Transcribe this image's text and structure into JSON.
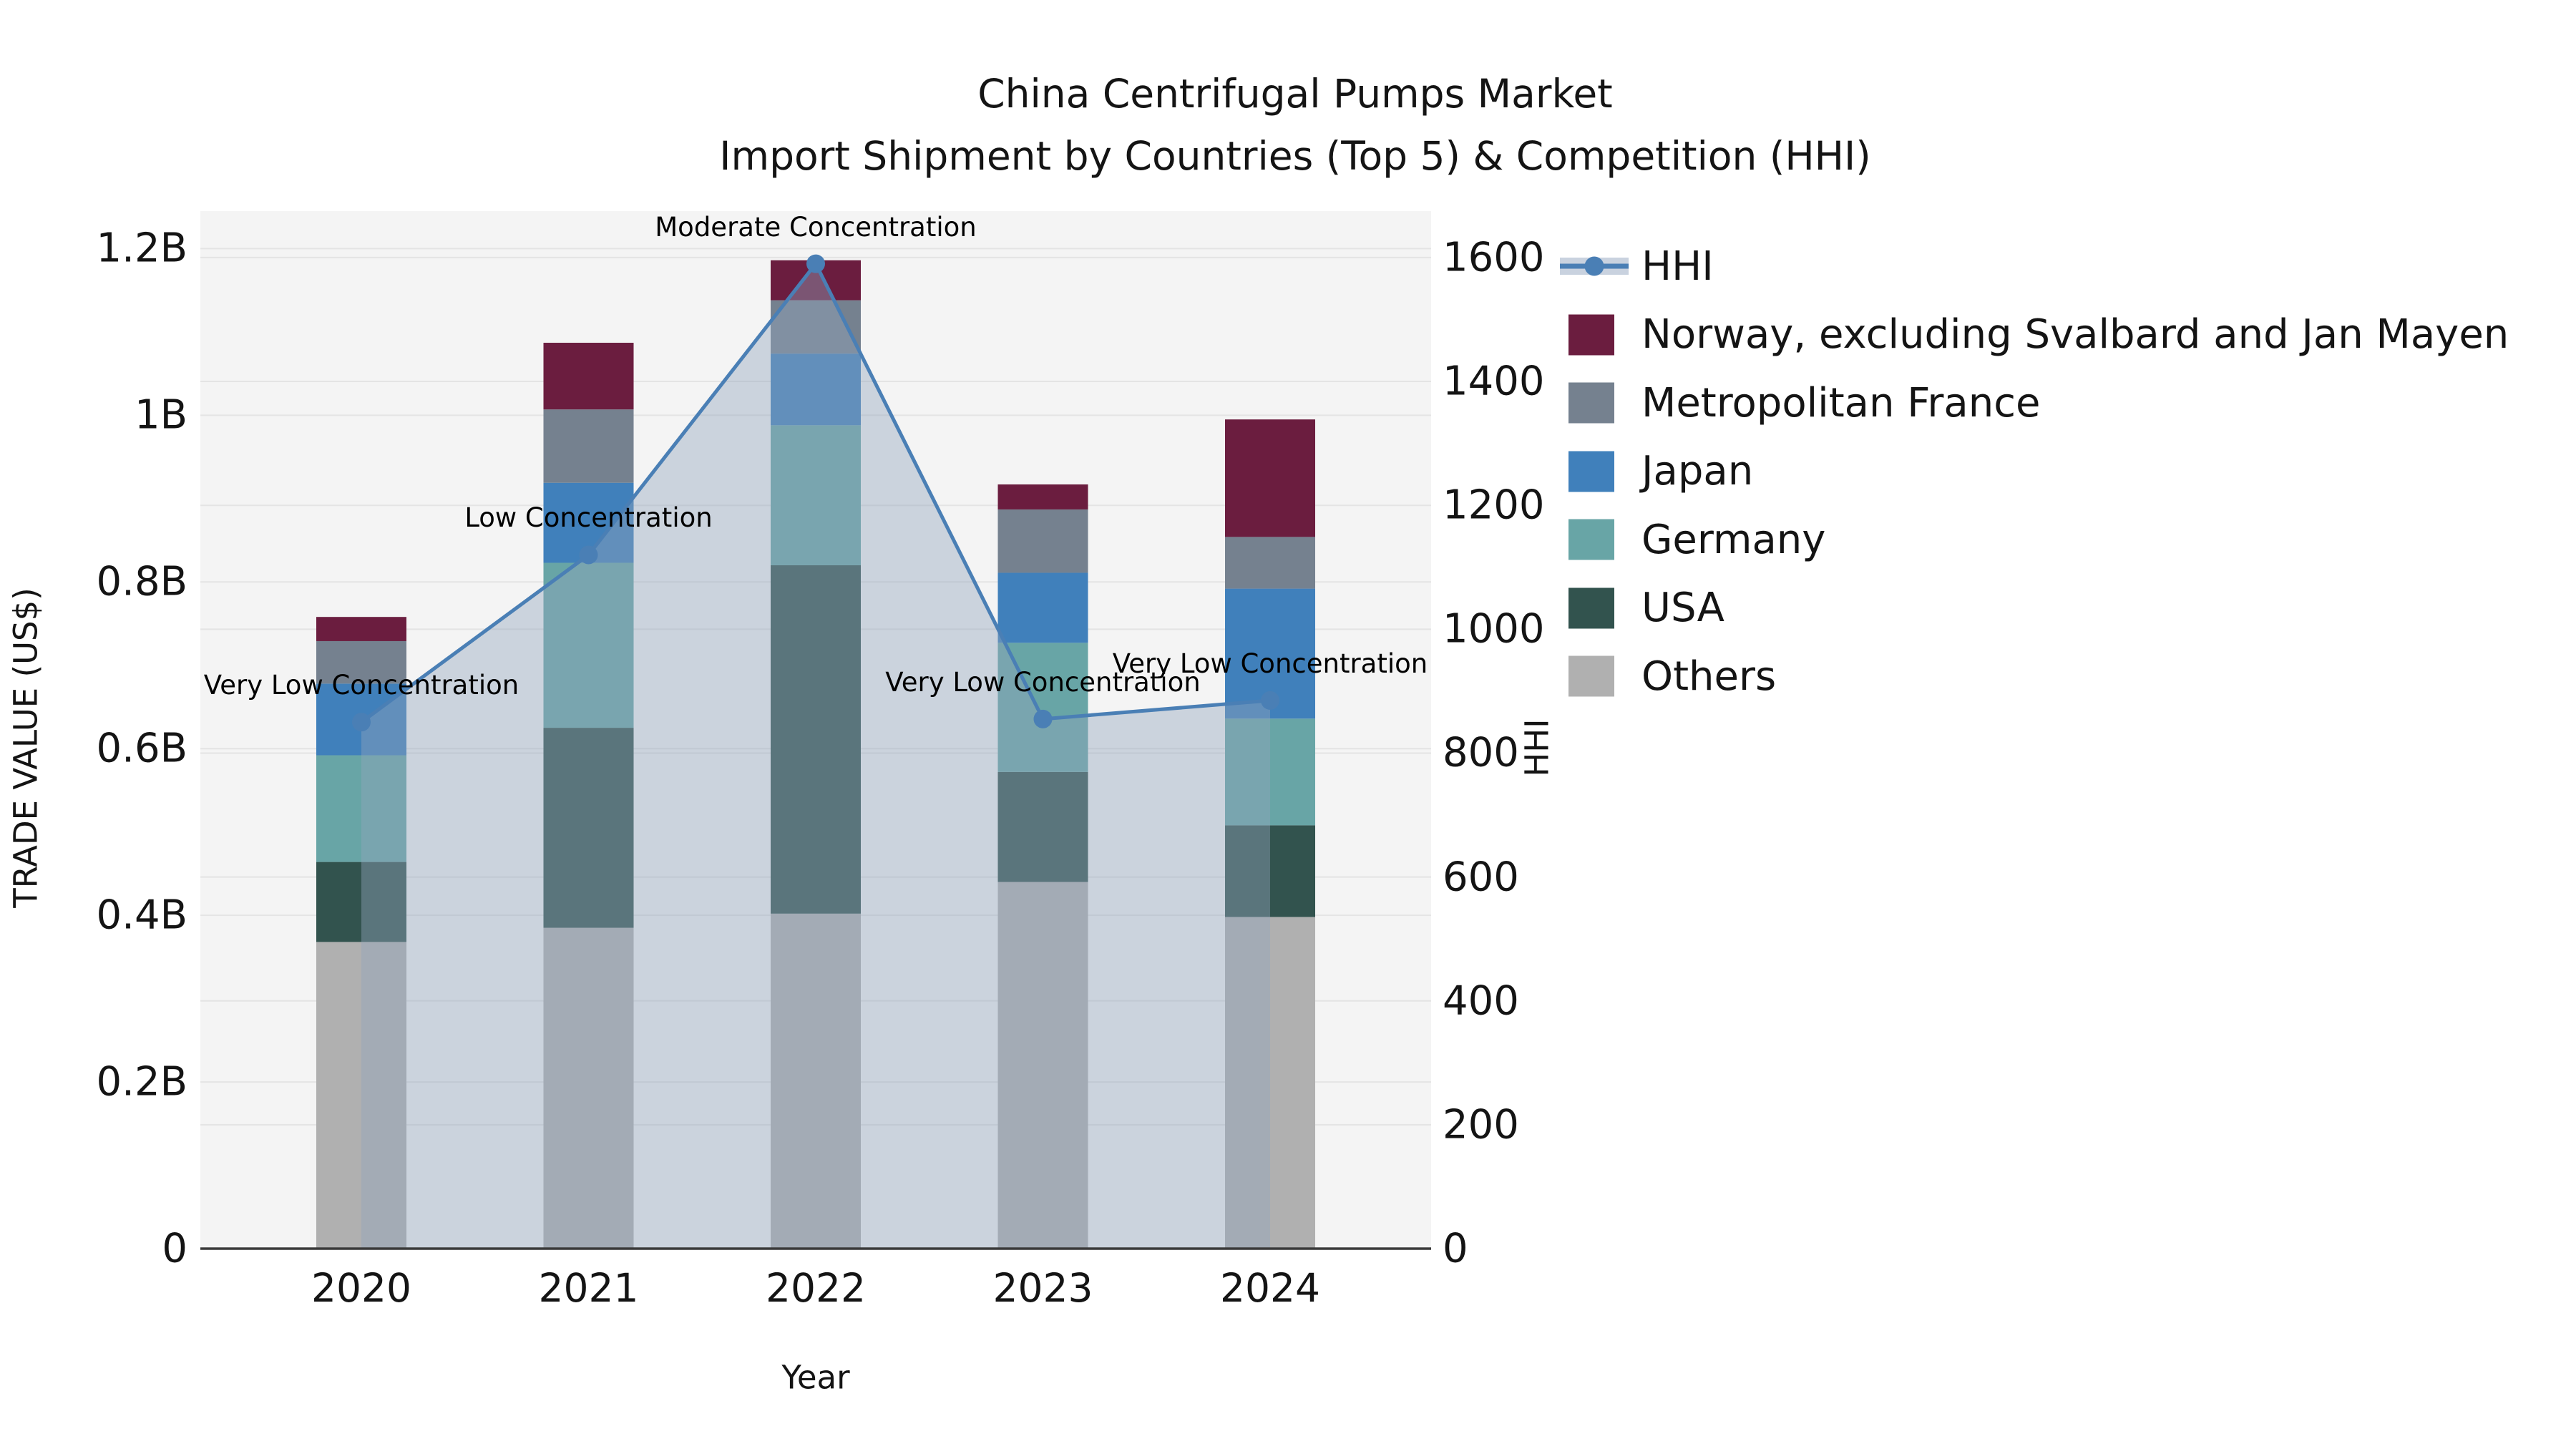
{
  "title": {
    "line1": "China Centrifugal Pumps Market",
    "line2": "Import Shipment by Countries (Top 5) & Competition (HHI)"
  },
  "axis_labels": {
    "x": "Year",
    "y_left": "TRADE VALUE (US$)",
    "y_right": "HHI"
  },
  "axes": {
    "left_ticks": [
      {
        "label": "0",
        "value": 0
      },
      {
        "label": "0.2B",
        "value": 0.2
      },
      {
        "label": "0.4B",
        "value": 0.4
      },
      {
        "label": "0.6B",
        "value": 0.6
      },
      {
        "label": "0.8B",
        "value": 0.8
      },
      {
        "label": "1B",
        "value": 1.0
      },
      {
        "label": "1.2B",
        "value": 1.2
      }
    ],
    "right_ticks": [
      {
        "label": "0",
        "value": 0
      },
      {
        "label": "200",
        "value": 200
      },
      {
        "label": "400",
        "value": 400
      },
      {
        "label": "600",
        "value": 600
      },
      {
        "label": "800",
        "value": 800
      },
      {
        "label": "1000",
        "value": 1000
      },
      {
        "label": "1200",
        "value": 1200
      },
      {
        "label": "1400",
        "value": 1400
      },
      {
        "label": "1600",
        "value": 1600
      }
    ]
  },
  "legend": [
    {
      "id": "hhi",
      "label": "HHI",
      "type": "line",
      "color": "#4A7FB5",
      "band": "#C9D2DF"
    },
    {
      "id": "norway",
      "label": "Norway, excluding Svalbard and Jan Mayen",
      "type": "swatch",
      "color": "#6B1D3F"
    },
    {
      "id": "france",
      "label": "Metropolitan France",
      "type": "swatch",
      "color": "#75818F"
    },
    {
      "id": "japan",
      "label": "Japan",
      "type": "swatch",
      "color": "#4080BB"
    },
    {
      "id": "germany",
      "label": "Germany",
      "type": "swatch",
      "color": "#68A5A6"
    },
    {
      "id": "usa",
      "label": "USA",
      "type": "swatch",
      "color": "#32534E"
    },
    {
      "id": "others",
      "label": "Others",
      "type": "swatch",
      "color": "#B0B0B0"
    }
  ],
  "chart_data": {
    "type": "stacked-bar+line",
    "title": "China Centrifugal Pumps Market — Import Shipment by Countries (Top 5) & Competition (HHI)",
    "xlabel": "Year",
    "ylabel_left": "TRADE VALUE (US$)",
    "ylabel_right": "HHI",
    "categories": [
      "2020",
      "2021",
      "2022",
      "2023",
      "2024"
    ],
    "unit": "billion US$",
    "ylim_left": [
      0,
      1.245
    ],
    "ylim_right": [
      0,
      1675
    ],
    "grid": true,
    "legend_position": "upper right, outside plot",
    "series": [
      {
        "name": "Others",
        "color": "#B0B0B0",
        "values": [
          0.368,
          0.385,
          0.402,
          0.44,
          0.398
        ]
      },
      {
        "name": "USA",
        "color": "#32534E",
        "values": [
          0.096,
          0.24,
          0.418,
          0.132,
          0.11
        ]
      },
      {
        "name": "Germany",
        "color": "#68A5A6",
        "values": [
          0.128,
          0.198,
          0.168,
          0.155,
          0.128
        ]
      },
      {
        "name": "Japan",
        "color": "#4080BB",
        "values": [
          0.086,
          0.096,
          0.086,
          0.084,
          0.156
        ]
      },
      {
        "name": "Metropolitan France",
        "color": "#75818F",
        "values": [
          0.051,
          0.088,
          0.064,
          0.076,
          0.062
        ]
      },
      {
        "name": "Norway, excluding Svalbard and Jan Mayen",
        "color": "#6B1D3F",
        "values": [
          0.029,
          0.08,
          0.048,
          0.03,
          0.141
        ]
      }
    ],
    "totals_read_from_chart": [
      0.758,
      1.087,
      1.186,
      0.917,
      0.995
    ],
    "line": {
      "name": "HHI",
      "axis": "right",
      "color": "#4A7FB5",
      "fill": "rgba(146,164,189,0.42)",
      "values": [
        850,
        1120,
        1590,
        855,
        885
      ],
      "annotations": [
        "Very Low Concentration",
        "Low Concentration",
        "Moderate Concentration",
        "Very Low Concentration",
        "Very Low Concentration"
      ]
    }
  },
  "colors": {
    "figure_bg": "#FFFFFF",
    "plot_bg": "#F4F4F4",
    "grid": "#E4E4E4",
    "spine": "#3A3A3A",
    "text": "#141414"
  }
}
